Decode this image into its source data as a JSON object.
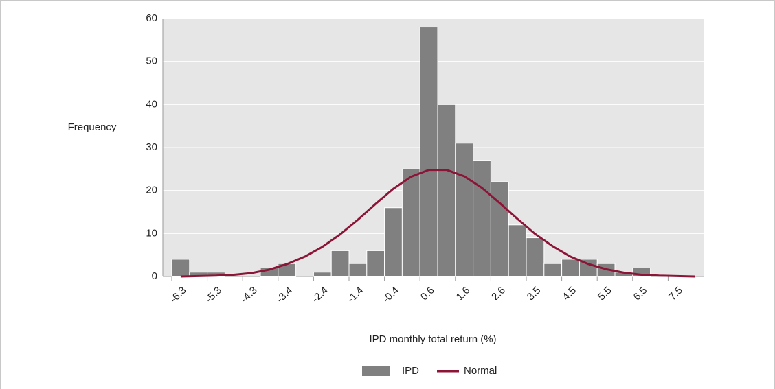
{
  "chart_data": {
    "type": "bar",
    "x_label": "IPD monthly total return (%)",
    "y_label": "Frequency",
    "categories": [
      "-6.3",
      null,
      "-5.3",
      null,
      "-4.3",
      null,
      "-3.4",
      null,
      "-2.4",
      null,
      "-1.4",
      null,
      "-0.4",
      null,
      "0.6",
      null,
      "1.6",
      null,
      "2.6",
      null,
      "3.5",
      null,
      "4.5",
      null,
      "5.5",
      null,
      "6.5",
      null,
      "7.5",
      null
    ],
    "series": [
      {
        "name": "IPD",
        "type": "bar",
        "color": "#808080",
        "values": [
          4,
          1,
          1,
          0,
          0,
          2,
          3,
          0,
          1,
          6,
          3,
          6,
          16,
          25,
          58,
          40,
          31,
          27,
          22,
          12,
          9,
          3,
          4,
          4,
          3,
          1,
          2,
          0,
          0,
          0
        ]
      },
      {
        "name": "Normal",
        "type": "line",
        "color": "#8c1537",
        "values": [
          0,
          0.1,
          0.2,
          0.4,
          0.8,
          1.6,
          2.9,
          4.6,
          6.9,
          9.8,
          13.2,
          16.9,
          20.4,
          23.2,
          24.8,
          24.8,
          23.3,
          20.6,
          17.1,
          13.4,
          9.9,
          7.0,
          4.6,
          2.9,
          1.7,
          0.9,
          0.4,
          0.2,
          0.1,
          0
        ]
      }
    ],
    "ylim": [
      0,
      60
    ],
    "yticks": [
      0,
      10,
      20,
      30,
      40,
      50,
      60
    ],
    "grid": true,
    "legend": "bottom"
  }
}
